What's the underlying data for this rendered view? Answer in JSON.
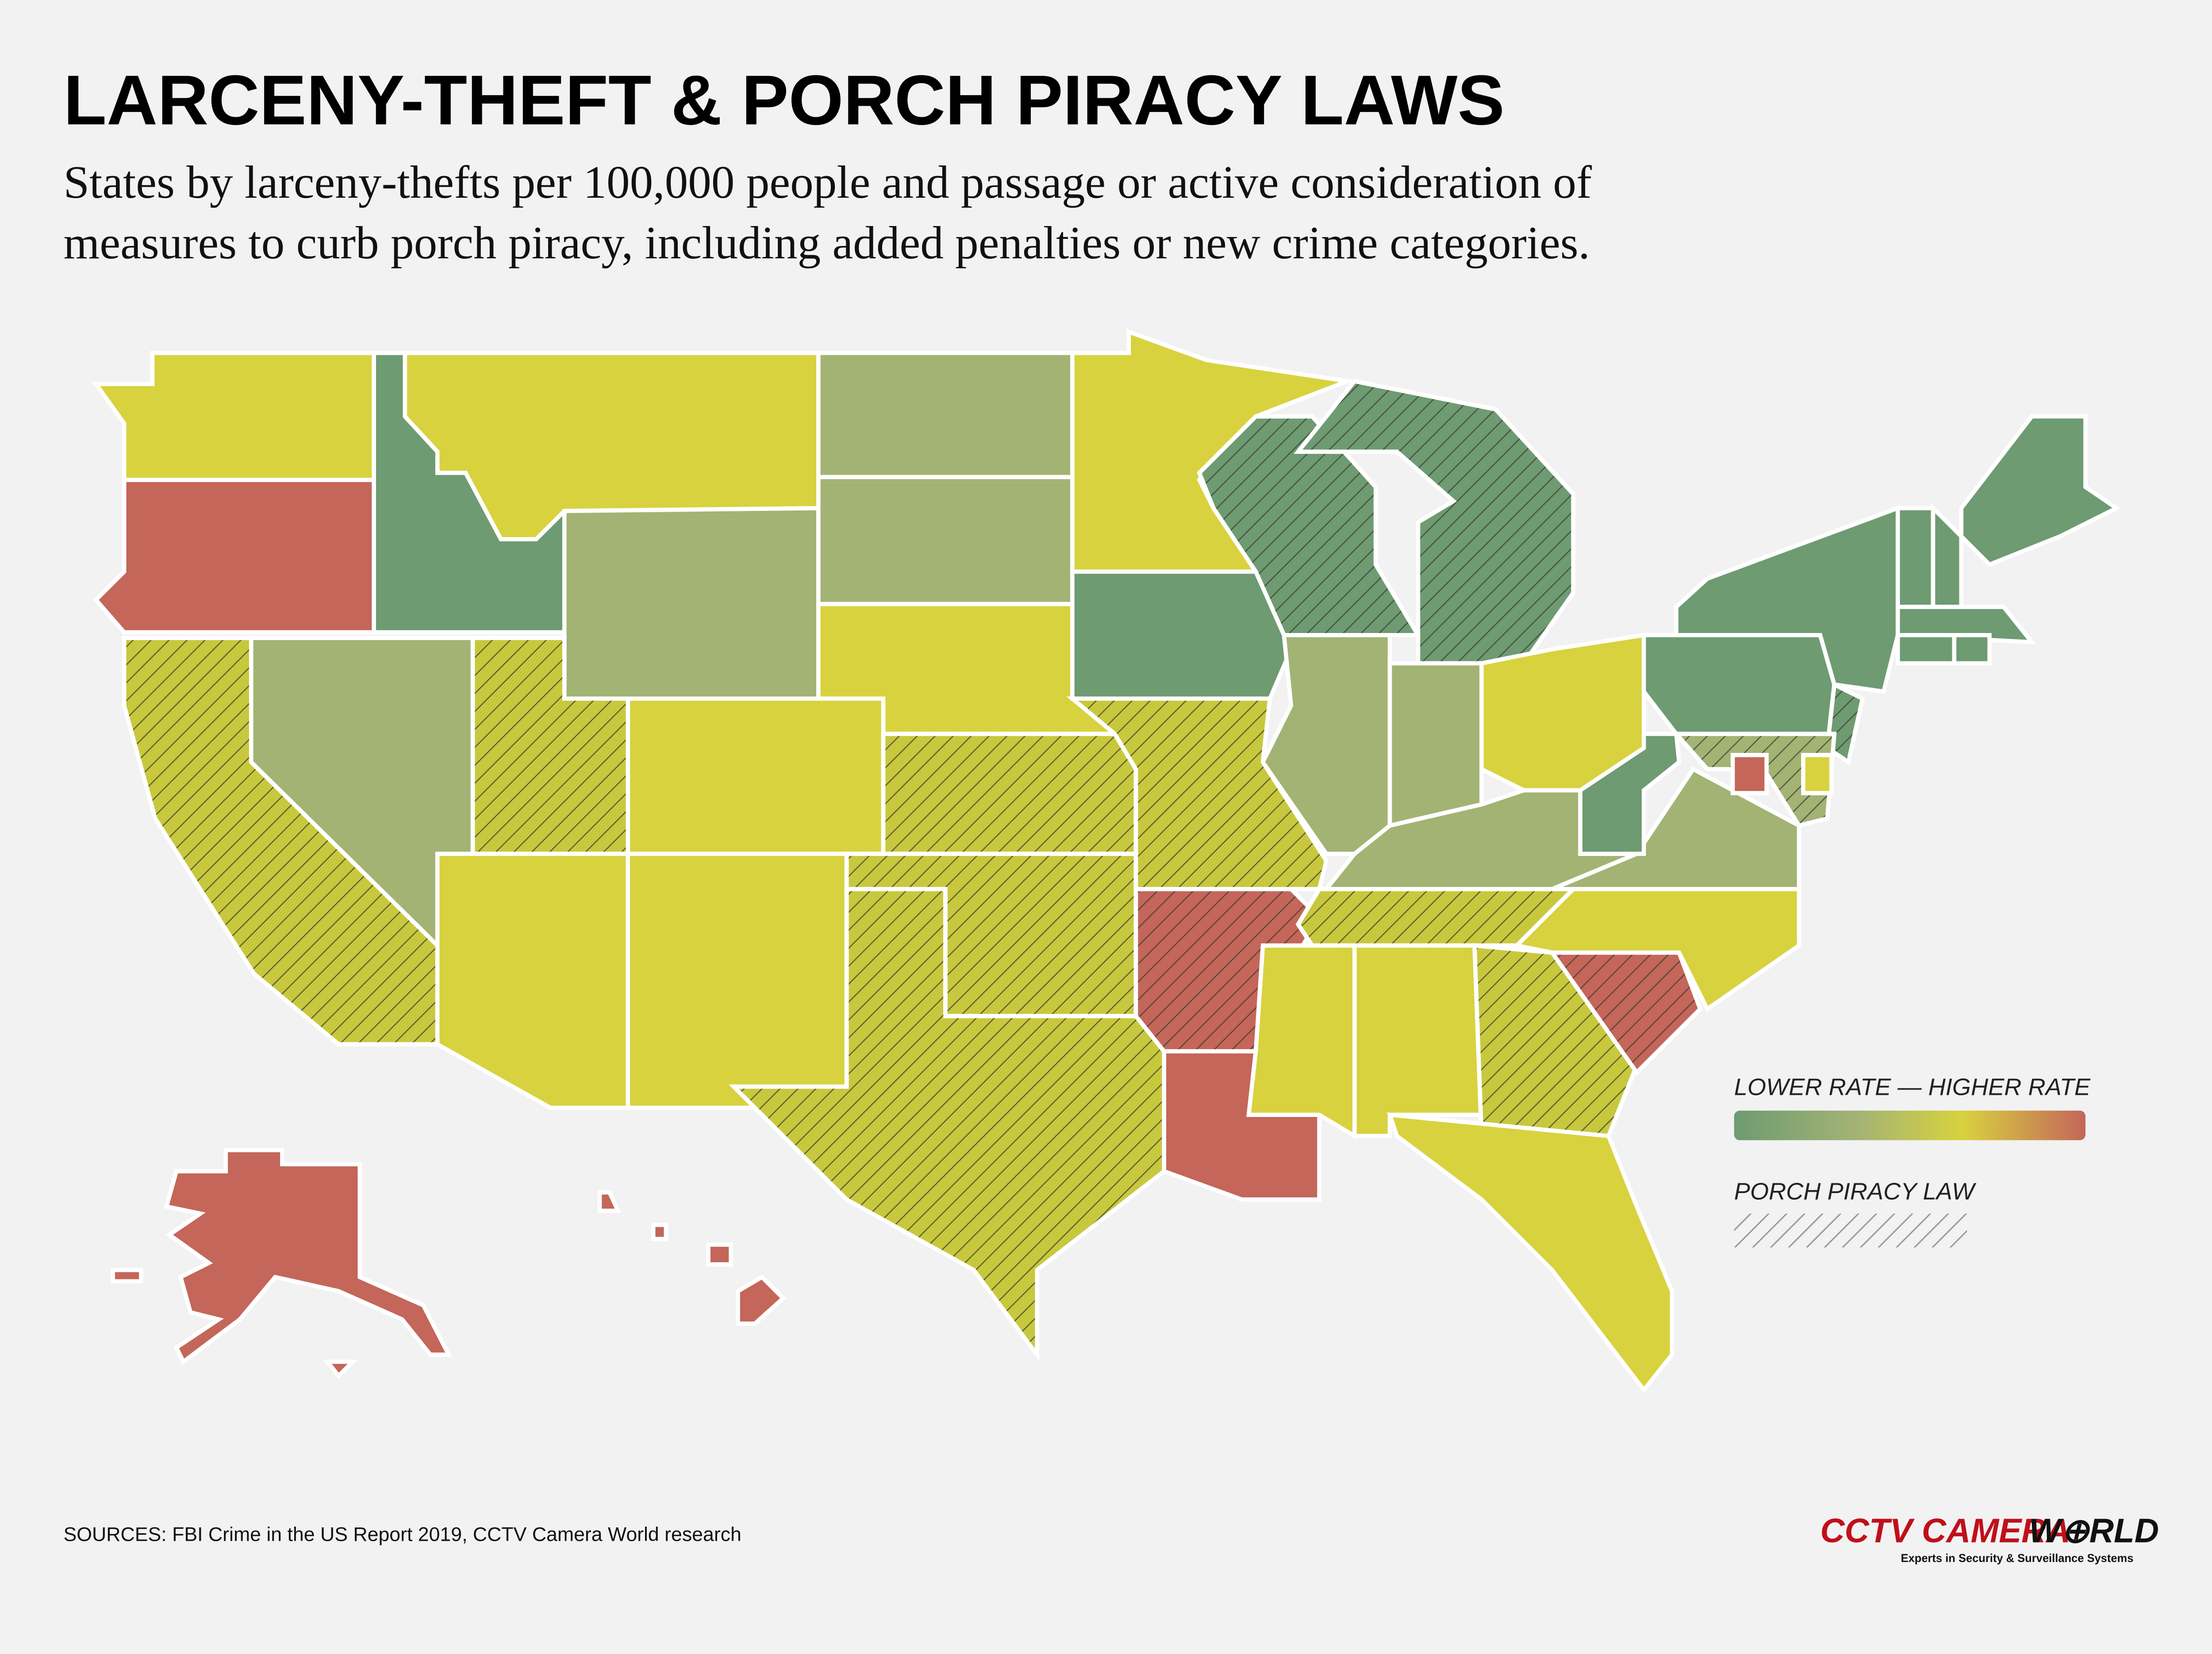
{
  "title": "LARCENY-THEFT & PORCH PIRACY LAWS",
  "subtitle": [
    "States by larceny-thefts per 100,000 people and passage or active consideration of",
    "measures to curb porch piracy, including added penalties or new crime categories."
  ],
  "legend": {
    "scale_label": "LOWER RATE — HIGHER RATE",
    "law_label": "PORCH PIRACY LAW"
  },
  "sources": "SOURCES: FBI Crime in the US Report 2019, CCTV Camera World research",
  "logo": {
    "brand": "CCTV CAMERA",
    "suffix": "W⊕RLD",
    "tagline": "Experts in Security & Surveillance Systems"
  }
}
